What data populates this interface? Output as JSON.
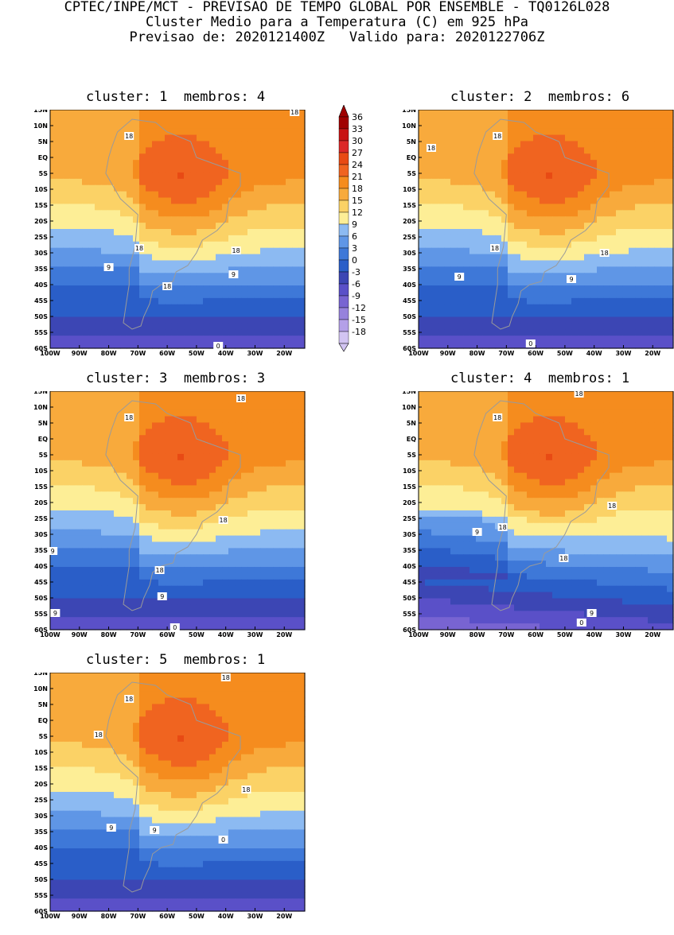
{
  "header": {
    "line1": "CPTEC/INPE/MCT - PREVISAO DE TEMPO GLOBAL POR ENSEMBLE - TQ0126L028",
    "line2": "Cluster Medio para a Temperatura (C) em 925 hPa",
    "line3": "Previsao de: 2020121400Z   Valido para: 2020122706Z"
  },
  "axes": {
    "lat_labels": [
      "15N",
      "10N",
      "5N",
      "EQ",
      "5S",
      "10S",
      "15S",
      "20S",
      "25S",
      "30S",
      "35S",
      "40S",
      "45S",
      "50S",
      "55S",
      "60S"
    ],
    "lon_labels": [
      "100W",
      "90W",
      "80W",
      "70W",
      "60W",
      "50W",
      "40W",
      "30W",
      "20W"
    ]
  },
  "colorbar": {
    "labels": [
      "36",
      "33",
      "30",
      "27",
      "24",
      "21",
      "18",
      "15",
      "12",
      "9",
      "6",
      "3",
      "0",
      "-3",
      "-6",
      "-9",
      "-12",
      "-15",
      "-18"
    ],
    "colors": [
      "#a00000",
      "#c81414",
      "#dc2828",
      "#e84a14",
      "#f06420",
      "#f58c1e",
      "#f8aa3c",
      "#fbd266",
      "#fdee96",
      "#8cbaf2",
      "#5f96e6",
      "#3e78d8",
      "#2a5ec8",
      "#3c46b4",
      "#5a50c8",
      "#7864d2",
      "#9682dc",
      "#b4a0e8",
      "#d2c4f2"
    ]
  },
  "panels": [
    {
      "title": "cluster: 1  membros: 4",
      "contour_labels": [
        "18",
        "18",
        "18",
        "18",
        "9",
        "9",
        "0",
        "18"
      ]
    },
    {
      "title": "cluster: 2  membros: 6",
      "contour_labels": [
        "18",
        "18",
        "18",
        "18",
        "9",
        "9",
        "0"
      ]
    },
    {
      "title": "cluster: 3  membros: 3",
      "contour_labels": [
        "18",
        "18",
        "18",
        "18",
        "9",
        "9",
        "0",
        "9"
      ]
    },
    {
      "title": "cluster: 4  membros: 1",
      "contour_labels": [
        "18",
        "18",
        "18",
        "18",
        "18",
        "9",
        "9",
        "0"
      ]
    },
    {
      "title": "cluster: 5  membros: 1",
      "contour_labels": [
        "18",
        "18",
        "18",
        "18",
        "9",
        "9",
        "0"
      ]
    }
  ]
}
